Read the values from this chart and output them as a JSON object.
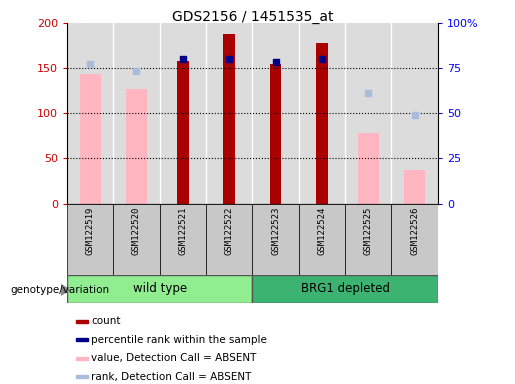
{
  "title": "GDS2156 / 1451535_at",
  "samples": [
    "GSM122519",
    "GSM122520",
    "GSM122521",
    "GSM122522",
    "GSM122523",
    "GSM122524",
    "GSM122525",
    "GSM122526"
  ],
  "group_labels": [
    "wild type",
    "BRG1 depleted"
  ],
  "group_colors": [
    "#90EE90",
    "#3CB371"
  ],
  "count_values": [
    null,
    null,
    158,
    188,
    155,
    178,
    null,
    null
  ],
  "count_color": "#AA0000",
  "percentile_values": [
    null,
    null,
    80,
    80,
    78.5,
    80,
    null,
    null
  ],
  "percentile_color": "#00008B",
  "absent_value_values": [
    143,
    127,
    null,
    null,
    null,
    null,
    78,
    37
  ],
  "absent_value_color": "#FFB6C1",
  "absent_rank_values": [
    77.5,
    73.5,
    null,
    null,
    null,
    null,
    61,
    49
  ],
  "absent_rank_color": "#AABBDD",
  "ylim_left": [
    0,
    200
  ],
  "ylim_right": [
    0,
    100
  ],
  "yticks_left": [
    0,
    50,
    100,
    150,
    200
  ],
  "yticks_right": [
    0,
    25,
    50,
    75,
    100
  ],
  "left_tick_color": "#CC0000",
  "right_tick_color": "#0000FF",
  "count_bar_width": 0.25,
  "absent_bar_width": 0.45,
  "scatter_size": 25,
  "genotype_label": "genotype/variation",
  "legend_items": [
    "count",
    "percentile rank within the sample",
    "value, Detection Call = ABSENT",
    "rank, Detection Call = ABSENT"
  ],
  "legend_colors": [
    "#AA0000",
    "#00008B",
    "#FFB6C1",
    "#AABBDD"
  ],
  "plot_bg": "#FFFFFF",
  "label_box_color": "#C8C8C8",
  "grid_color": "#000000"
}
